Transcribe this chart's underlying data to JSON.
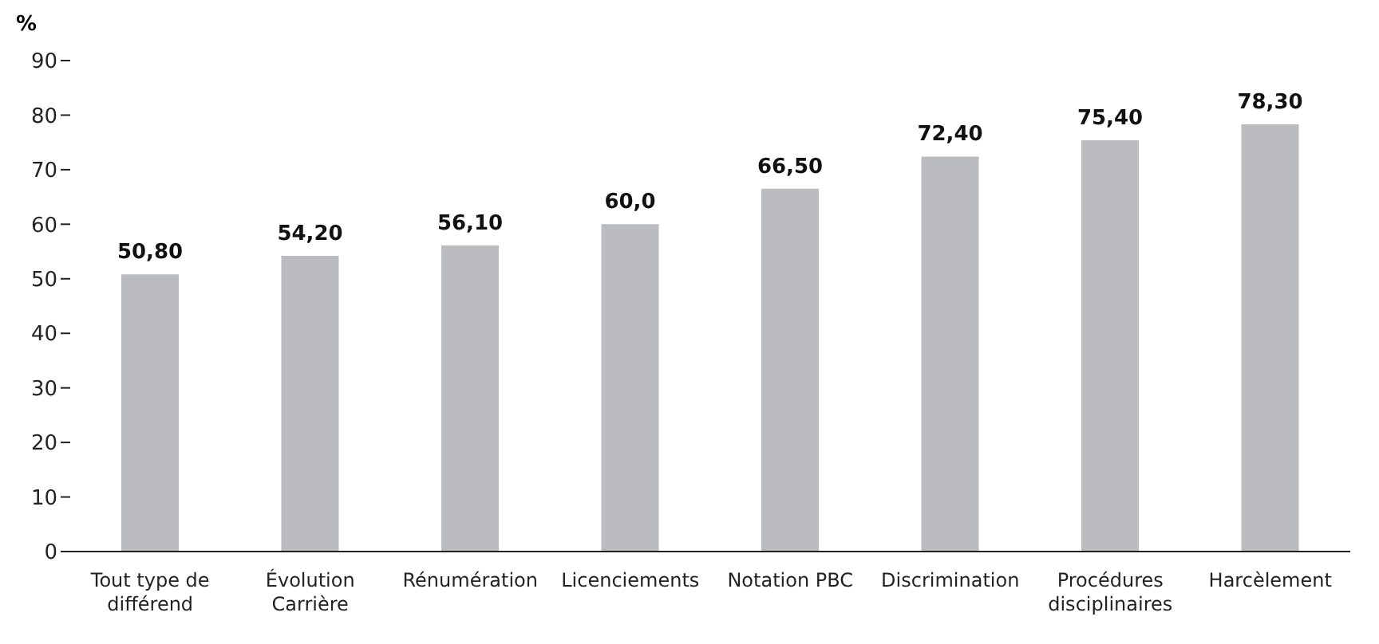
{
  "chart_data": {
    "type": "bar",
    "ylabel": "%",
    "categories": [
      "Tout type de différend",
      "Évolution Carrière",
      "Rénumération",
      "Licenciements",
      "Notation PBC",
      "Discrimination",
      "Procédures disciplinaires",
      "Harcèlement"
    ],
    "values": [
      50.8,
      54.2,
      56.1,
      60.0,
      66.5,
      72.4,
      75.4,
      78.3
    ],
    "value_labels": [
      "50,80",
      "54,20",
      "56,10",
      "60,0",
      "66,50",
      "72,40",
      "75,40",
      "78,30"
    ],
    "color": "#bbbcc0",
    "ylim": [
      0,
      90
    ],
    "yticks": [
      0,
      10,
      20,
      30,
      40,
      50,
      60,
      70,
      80,
      90
    ],
    "grid": false
  }
}
